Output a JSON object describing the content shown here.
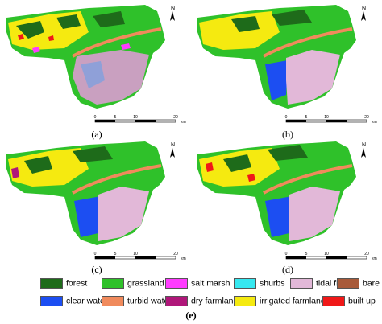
{
  "panels": [
    {
      "id": "a",
      "label": "(a)"
    },
    {
      "id": "b",
      "label": "(b)"
    },
    {
      "id": "c",
      "label": "(c)"
    },
    {
      "id": "d",
      "label": "(d)"
    }
  ],
  "scale_bar": {
    "ticks": [
      "0",
      "5",
      "10",
      "20"
    ],
    "unit": "km"
  },
  "north_arrow": {
    "label": "N"
  },
  "legend": [
    {
      "label": "forest",
      "color": "#1e6b1a"
    },
    {
      "label": "grassland",
      "color": "#2fc12a"
    },
    {
      "label": "salt marsh",
      "color": "#ff3cff"
    },
    {
      "label": "shurbs",
      "color": "#36e8f0"
    },
    {
      "label": "tidal flat",
      "color": "#e2b8d8"
    },
    {
      "label": "bare soil",
      "color": "#a85a3a"
    },
    {
      "label": "clear water",
      "color": "#1c4ef2"
    },
    {
      "label": "turbid water",
      "color": "#f08a5c"
    },
    {
      "label": "dry farmland",
      "color": "#b0177a"
    },
    {
      "label": "irrigated farmland",
      "color": "#f5ea10"
    },
    {
      "label": "built up",
      "color": "#f01818"
    }
  ],
  "figure_label": "(e)"
}
